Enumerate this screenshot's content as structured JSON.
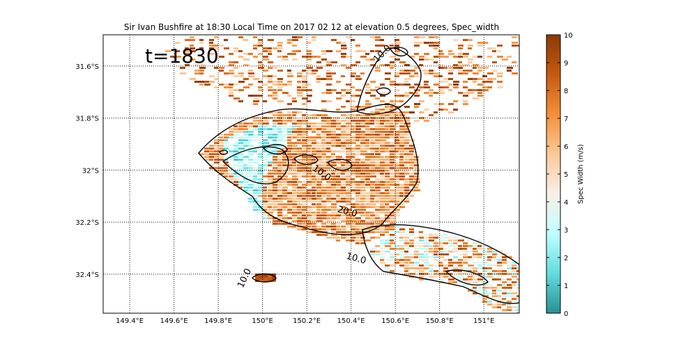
{
  "chart_data": {
    "type": "heatmap",
    "title": "Sir Ivan Bushfire at 18:30 Local Time on 2017 02 12 at elevation 0.5 degrees, Spec_width",
    "annotation": "t=1830",
    "xlabel": "",
    "ylabel": "",
    "xlim": [
      149.28,
      151.16
    ],
    "ylim": [
      -32.55,
      -31.48
    ],
    "x_ticks": [
      {
        "value": 149.4,
        "label": "149.4°E"
      },
      {
        "value": 149.6,
        "label": "149.6°E"
      },
      {
        "value": 149.8,
        "label": "149.8°E"
      },
      {
        "value": 150.0,
        "label": "150°E"
      },
      {
        "value": 150.2,
        "label": "150.2°E"
      },
      {
        "value": 150.4,
        "label": "150.4°E"
      },
      {
        "value": 150.6,
        "label": "150.6°E"
      },
      {
        "value": 150.8,
        "label": "150.8°E"
      },
      {
        "value": 151.0,
        "label": "151°E"
      }
    ],
    "y_ticks": [
      {
        "value": -31.6,
        "label": "31.6°S"
      },
      {
        "value": -31.8,
        "label": "31.8°S"
      },
      {
        "value": -32.0,
        "label": "32°S"
      },
      {
        "value": -32.2,
        "label": "32.2°S"
      },
      {
        "value": -32.4,
        "label": "32.4°S"
      }
    ],
    "grid": "dotted",
    "colorbar": {
      "label": "Spec Width (m/s)",
      "min": 0,
      "max": 10,
      "ticks": [
        "0",
        "1",
        "2",
        "3",
        "4",
        "5",
        "6",
        "7",
        "8",
        "9",
        "10"
      ],
      "colors": [
        "#2a8f94",
        "#63dcde",
        "#bfffff",
        "#f7f0e6",
        "#fbc998",
        "#f58e3a",
        "#c65a12",
        "#8a3a05"
      ]
    },
    "contour_labels": [
      {
        "text": "10.0",
        "lon": 150.26,
        "lat": -32.02,
        "rotate": 35
      },
      {
        "text": "20.0",
        "lon": 150.38,
        "lat": -32.17,
        "rotate": 15
      },
      {
        "text": "10.0",
        "lon": 150.42,
        "lat": -32.35,
        "rotate": 15
      },
      {
        "text": "10.0",
        "lon": 149.93,
        "lat": -32.42,
        "rotate": -65
      },
      {
        "text": "10.0",
        "lon": 150.55,
        "lat": -31.56,
        "rotate": -45
      }
    ],
    "regions": {
      "north": {
        "lon_range": [
          149.55,
          151.16
        ],
        "lat_range": [
          -31.9,
          -31.48
        ],
        "mean_value": 7.5
      },
      "main": {
        "lon_range": [
          149.75,
          150.68
        ],
        "lat_range": [
          -32.25,
          -31.78
        ],
        "mean_value": 7.0
      },
      "west_edge": {
        "lon_range": [
          149.82,
          150.05
        ],
        "lat_range": [
          -32.2,
          -31.82
        ],
        "mean_value": 2.5
      },
      "southeast": {
        "lon_range": [
          150.5,
          151.16
        ],
        "lat_range": [
          -32.55,
          -32.25
        ],
        "mean_value": 5.5
      },
      "south_blob": {
        "lon_range": [
          149.96,
          150.08
        ],
        "lat_range": [
          -32.43,
          -32.41
        ],
        "mean_value": 9.0
      }
    }
  }
}
